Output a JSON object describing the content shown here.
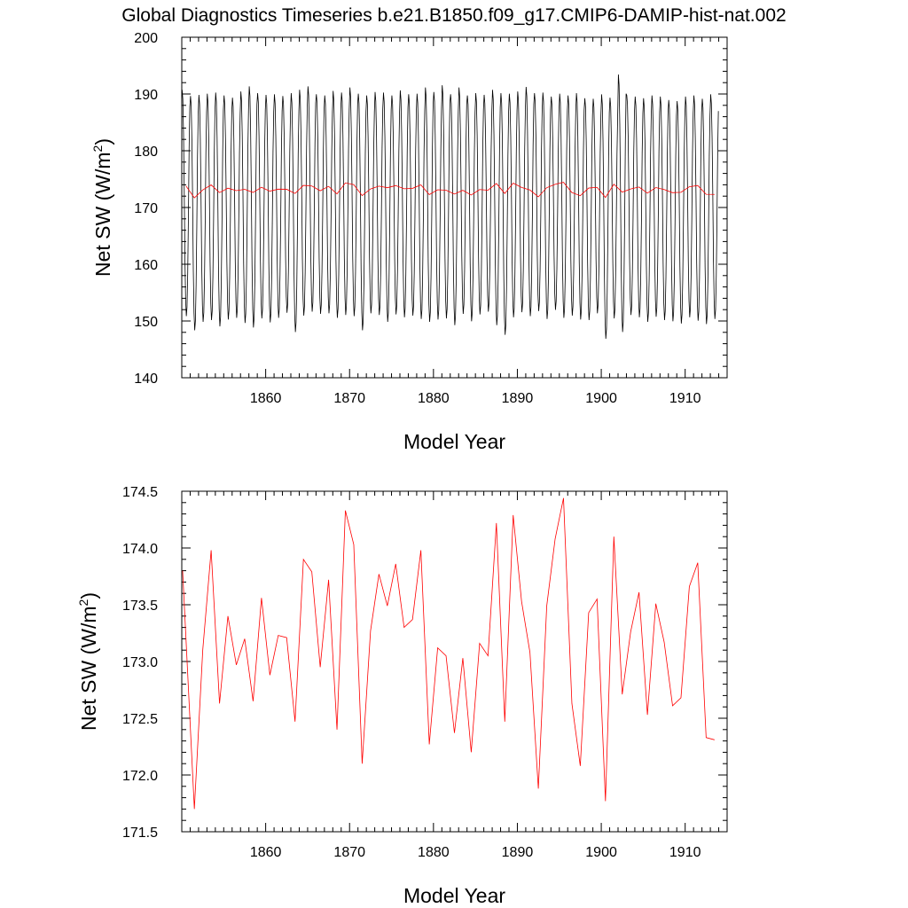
{
  "title": "Global Diagnostics Timeseries b.e21.B1850.f09_g17.CMIP6-DAMIP-hist-nat.002",
  "chart_data": [
    {
      "type": "line",
      "xlabel": "Model Year",
      "ylabel": "Net SW (W/m",
      "ylabel_sup": "2",
      "ylabel_close": ")",
      "xlim": [
        1850,
        1915
      ],
      "ylim": [
        140,
        200
      ],
      "xticks": [
        1860,
        1870,
        1880,
        1890,
        1900,
        1910
      ],
      "xtick_labels": [
        "1860",
        "1870",
        "1880",
        "1890",
        "1900",
        "1910"
      ],
      "yticks": [
        140,
        150,
        160,
        170,
        180,
        190,
        200
      ],
      "ytick_labels": [
        "140",
        "150",
        "160",
        "170",
        "180",
        "190",
        "200"
      ],
      "grid": false,
      "series": [
        {
          "color": "#000000",
          "monthly_cycle": {
            "start_year": 1850,
            "max_values": [
              190.8,
              189.7,
              189.9,
              190.1,
              190.3,
              189.8,
              189.4,
              190.5,
              191.4,
              190.2,
              189.9,
              190.0,
              189.7,
              190.2,
              190.8,
              191.4,
              190.0,
              189.8,
              190.6,
              190.3,
              191.2,
              190.1,
              189.8,
              190.4,
              190.3,
              189.8,
              190.7,
              190.0,
              190.1,
              191.2,
              190.4,
              191.6,
              190.0,
              191.2,
              189.8,
              190.2,
              189.9,
              190.8,
              190.2,
              190.1,
              190.5,
              191.3,
              190.2,
              190.3,
              189.6,
              190.1,
              189.8,
              190.2,
              189.3,
              189.2,
              190.0,
              189.4,
              193.5,
              189.8,
              189.6,
              189.3,
              189.8,
              189.6,
              189.0,
              188.8,
              189.6,
              189.8,
              189.2,
              190.0
            ],
            "min_values": [
              150.8,
              148.3,
              149.8,
              150.1,
              149.0,
              150.2,
              150.5,
              149.6,
              148.8,
              150.4,
              149.7,
              150.5,
              151.4,
              148.0,
              150.9,
              151.6,
              151.2,
              151.3,
              150.5,
              151.0,
              150.8,
              148.3,
              151.3,
              151.0,
              149.8,
              151.1,
              150.6,
              150.9,
              150.3,
              149.8,
              150.2,
              150.4,
              149.2,
              151.2,
              149.9,
              151.1,
              151.6,
              149.2,
              147.5,
              150.6,
              151.5,
              150.8,
              151.7,
              150.3,
              151.9,
              150.5,
              150.9,
              150.2,
              150.1,
              151.3,
              146.8,
              150.4,
              148.0,
              151.0,
              150.6,
              149.8,
              150.7,
              150.1,
              149.9,
              149.5,
              150.6,
              150.0,
              149.4,
              150.3
            ]
          }
        },
        {
          "color": "#ff0000",
          "x": [
            1850.5,
            1851.5,
            1852.5,
            1853.5,
            1854.5,
            1855.5,
            1856.5,
            1857.5,
            1858.5,
            1859.5,
            1860.5,
            1861.5,
            1862.5,
            1863.5,
            1864.5,
            1865.5,
            1866.5,
            1867.5,
            1868.5,
            1869.5,
            1870.5,
            1871.5,
            1872.5,
            1873.5,
            1874.5,
            1875.5,
            1876.5,
            1877.5,
            1878.5,
            1879.5,
            1880.5,
            1881.5,
            1882.5,
            1883.5,
            1884.5,
            1885.5,
            1886.5,
            1887.5,
            1888.5,
            1889.5,
            1890.5,
            1891.5,
            1892.5,
            1893.5,
            1894.5,
            1895.5,
            1896.5,
            1897.5,
            1898.5,
            1899.5,
            1900.5,
            1901.5,
            1902.5,
            1903.5,
            1904.5,
            1905.5,
            1906.5,
            1907.5,
            1908.5,
            1909.5,
            1910.5,
            1911.5,
            1912.5,
            1913.5
          ],
          "values": [
            173.8,
            171.7,
            173.1,
            173.98,
            172.63,
            173.4,
            172.97,
            173.2,
            172.65,
            173.56,
            172.88,
            173.23,
            173.21,
            172.47,
            173.9,
            173.79,
            172.95,
            173.72,
            172.4,
            174.33,
            174.03,
            172.1,
            173.27,
            173.77,
            173.49,
            173.86,
            173.3,
            173.37,
            173.98,
            172.27,
            173.12,
            173.05,
            172.37,
            173.03,
            172.2,
            173.16,
            173.05,
            174.22,
            172.47,
            174.29,
            173.53,
            173.08,
            171.88,
            173.49,
            174.08,
            174.44,
            172.63,
            172.08,
            173.43,
            173.55,
            171.77,
            174.1,
            172.71,
            173.26,
            173.61,
            172.53,
            173.51,
            173.17,
            172.61,
            172.68,
            173.66,
            173.87,
            172.33,
            172.31
          ]
        }
      ]
    },
    {
      "type": "line",
      "xlabel": "Model Year",
      "ylabel": "Net SW (W/m",
      "ylabel_sup": "2",
      "ylabel_close": ")",
      "xlim": [
        1850,
        1915
      ],
      "ylim": [
        171.5,
        174.5
      ],
      "xticks": [
        1860,
        1870,
        1880,
        1890,
        1900,
        1910
      ],
      "xtick_labels": [
        "1860",
        "1870",
        "1880",
        "1890",
        "1900",
        "1910"
      ],
      "yticks": [
        171.5,
        172.0,
        172.5,
        173.0,
        173.5,
        174.0,
        174.5
      ],
      "ytick_labels": [
        "171.5",
        "172.0",
        "172.5",
        "173.0",
        "173.5",
        "174.0",
        "174.5"
      ],
      "grid": false,
      "series": [
        {
          "color": "#ff0000",
          "x": [
            1850.1,
            1851.5,
            1852.5,
            1853.5,
            1854.5,
            1855.5,
            1856.5,
            1857.5,
            1858.5,
            1859.5,
            1860.5,
            1861.5,
            1862.5,
            1863.5,
            1864.5,
            1865.5,
            1866.5,
            1867.5,
            1868.5,
            1869.5,
            1870.5,
            1871.5,
            1872.5,
            1873.5,
            1874.5,
            1875.5,
            1876.5,
            1877.5,
            1878.5,
            1879.5,
            1880.5,
            1881.5,
            1882.5,
            1883.5,
            1884.5,
            1885.5,
            1886.5,
            1887.5,
            1888.5,
            1889.5,
            1890.5,
            1891.5,
            1892.5,
            1893.5,
            1894.5,
            1895.5,
            1896.5,
            1897.5,
            1898.5,
            1899.5,
            1900.5,
            1901.5,
            1902.5,
            1903.5,
            1904.5,
            1905.5,
            1906.5,
            1907.5,
            1908.5,
            1909.5,
            1910.5,
            1911.5,
            1912.5,
            1913.5
          ],
          "values": [
            173.8,
            171.7,
            173.1,
            173.98,
            172.63,
            173.4,
            172.97,
            173.2,
            172.65,
            173.56,
            172.88,
            173.23,
            173.21,
            172.47,
            173.9,
            173.79,
            172.95,
            173.72,
            172.4,
            174.33,
            174.03,
            172.1,
            173.27,
            173.77,
            173.49,
            173.86,
            173.3,
            173.37,
            173.98,
            172.27,
            173.12,
            173.05,
            172.37,
            173.03,
            172.2,
            173.16,
            173.05,
            174.22,
            172.47,
            174.29,
            173.53,
            173.08,
            171.88,
            173.49,
            174.08,
            174.44,
            172.63,
            172.08,
            173.43,
            173.55,
            171.77,
            174.1,
            172.71,
            173.26,
            173.61,
            172.53,
            173.51,
            173.17,
            172.61,
            172.68,
            173.66,
            173.87,
            172.33,
            172.31
          ]
        }
      ]
    }
  ]
}
